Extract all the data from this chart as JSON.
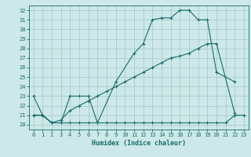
{
  "xlabel": "Humidex (Indice chaleur)",
  "xlim": [
    -0.5,
    23.5
  ],
  "ylim": [
    19.5,
    32.5
  ],
  "yticks": [
    20,
    21,
    22,
    23,
    24,
    25,
    26,
    27,
    28,
    29,
    30,
    31,
    32
  ],
  "xticks": [
    0,
    1,
    2,
    3,
    4,
    5,
    6,
    7,
    8,
    9,
    10,
    11,
    12,
    13,
    14,
    15,
    16,
    17,
    18,
    19,
    20,
    21,
    22,
    23
  ],
  "bg_color": "#cce8e8",
  "grid_color": "#aacccc",
  "line_color": "#1a6b6b",
  "line1_x": [
    0,
    1,
    2,
    3,
    4,
    5,
    6,
    7,
    9,
    11,
    12,
    13,
    14,
    15,
    16,
    17,
    18,
    19,
    20,
    22
  ],
  "line1_y": [
    23,
    21,
    20.2,
    20.2,
    23,
    23,
    23,
    20.2,
    24.5,
    27.5,
    28.5,
    31,
    31.2,
    31.2,
    32,
    32,
    31,
    31,
    25.5,
    24.5
  ],
  "line2_x": [
    0,
    1,
    2,
    3,
    4,
    5,
    6,
    7,
    8,
    9,
    10,
    11,
    12,
    13,
    14,
    15,
    16,
    17,
    18,
    19,
    20,
    21,
    22,
    23
  ],
  "line2_y": [
    21,
    21,
    20.2,
    20.2,
    20.2,
    20.2,
    20.2,
    20.2,
    20.2,
    20.2,
    20.2,
    20.2,
    20.2,
    20.2,
    20.2,
    20.2,
    20.2,
    20.2,
    20.2,
    20.2,
    20.2,
    20.2,
    21,
    21
  ],
  "line3_x": [
    0,
    1,
    2,
    3,
    4,
    5,
    6,
    7,
    8,
    9,
    10,
    11,
    12,
    13,
    14,
    15,
    16,
    17,
    18,
    19,
    20,
    22
  ],
  "line3_y": [
    21,
    21,
    20.2,
    20.5,
    21.5,
    22,
    22.5,
    23,
    23.5,
    24,
    24.5,
    25,
    25.5,
    26,
    26.5,
    27,
    27.2,
    27.5,
    28,
    28.5,
    28.5,
    21.2
  ]
}
